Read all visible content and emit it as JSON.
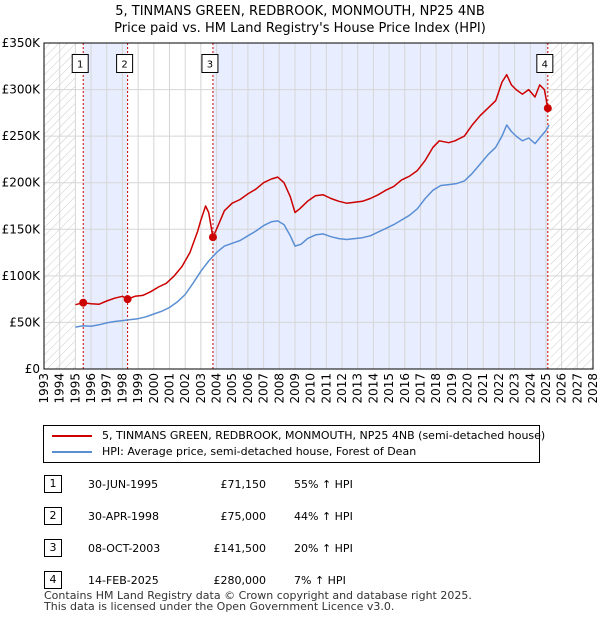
{
  "chart_data": {
    "type": "line",
    "title": "5, TINMANS GREEN, REDBROOK, MONMOUTH, NP25 4NB",
    "subtitle": "Price paid vs. HM Land Registry's House Price Index (HPI)",
    "xlim": [
      1993,
      2028
    ],
    "ylim": [
      0,
      350000
    ],
    "xticks": [
      1993,
      1994,
      1995,
      1996,
      1997,
      1998,
      1999,
      2000,
      2001,
      2002,
      2003,
      2004,
      2005,
      2006,
      2007,
      2008,
      2009,
      2010,
      2011,
      2012,
      2013,
      2014,
      2015,
      2016,
      2017,
      2018,
      2019,
      2020,
      2021,
      2022,
      2023,
      2024,
      2025,
      2026,
      2027,
      2028
    ],
    "xtick_labels": [
      "1993",
      "1994",
      "1995",
      "1996",
      "1997",
      "1998",
      "1999",
      "2000",
      "2001",
      "2002",
      "2003",
      "2004",
      "2005",
      "2006",
      "2007",
      "2008",
      "2009",
      "2010",
      "2011",
      "2012",
      "2013",
      "2014",
      "2015",
      "2016",
      "2017",
      "2018",
      "2019",
      "2020",
      "2021",
      "2022",
      "2023",
      "2024",
      "2025",
      "2026",
      "2027",
      "2028"
    ],
    "yticks": [
      0,
      50000,
      100000,
      150000,
      200000,
      250000,
      300000,
      350000
    ],
    "ytick_labels": [
      "£0",
      "£50K",
      "£100K",
      "£150K",
      "£200K",
      "£250K",
      "£300K",
      "£350K"
    ],
    "data_start": 1995.0,
    "data_end": 2025.3,
    "series": [
      {
        "name": "5, TINMANS GREEN, REDBROOK, MONMOUTH, NP25 4NB (semi-detached house)",
        "color": "#cc0000",
        "points": [
          [
            1995.0,
            69000
          ],
          [
            1995.5,
            71150
          ],
          [
            1996.0,
            70000
          ],
          [
            1996.5,
            69500
          ],
          [
            1997.0,
            73000
          ],
          [
            1997.5,
            76000
          ],
          [
            1998.0,
            78000
          ],
          [
            1998.33,
            75000
          ],
          [
            1998.8,
            78000
          ],
          [
            1999.3,
            79000
          ],
          [
            1999.8,
            83000
          ],
          [
            2000.3,
            88000
          ],
          [
            2000.8,
            92000
          ],
          [
            2001.3,
            100000
          ],
          [
            2001.8,
            110000
          ],
          [
            2002.3,
            125000
          ],
          [
            2002.8,
            148000
          ],
          [
            2003.0,
            160000
          ],
          [
            2003.3,
            175000
          ],
          [
            2003.5,
            168000
          ],
          [
            2003.77,
            141500
          ],
          [
            2004.0,
            150000
          ],
          [
            2004.5,
            170000
          ],
          [
            2005.0,
            178000
          ],
          [
            2005.5,
            182000
          ],
          [
            2006.0,
            188000
          ],
          [
            2006.5,
            193000
          ],
          [
            2007.0,
            200000
          ],
          [
            2007.5,
            204000
          ],
          [
            2007.9,
            206000
          ],
          [
            2008.3,
            200000
          ],
          [
            2008.7,
            185000
          ],
          [
            2009.0,
            168000
          ],
          [
            2009.3,
            172000
          ],
          [
            2009.8,
            180000
          ],
          [
            2010.3,
            186000
          ],
          [
            2010.8,
            187000
          ],
          [
            2011.3,
            183000
          ],
          [
            2011.8,
            180000
          ],
          [
            2012.3,
            178000
          ],
          [
            2012.8,
            179000
          ],
          [
            2013.3,
            180000
          ],
          [
            2013.8,
            183000
          ],
          [
            2014.3,
            187000
          ],
          [
            2014.8,
            192000
          ],
          [
            2015.3,
            196000
          ],
          [
            2015.8,
            203000
          ],
          [
            2016.3,
            207000
          ],
          [
            2016.8,
            213000
          ],
          [
            2017.3,
            224000
          ],
          [
            2017.8,
            238000
          ],
          [
            2018.2,
            245000
          ],
          [
            2018.8,
            243000
          ],
          [
            2019.2,
            245000
          ],
          [
            2019.8,
            250000
          ],
          [
            2020.3,
            262000
          ],
          [
            2020.8,
            272000
          ],
          [
            2021.3,
            280000
          ],
          [
            2021.8,
            288000
          ],
          [
            2022.2,
            308000
          ],
          [
            2022.5,
            316000
          ],
          [
            2022.8,
            305000
          ],
          [
            2023.1,
            300000
          ],
          [
            2023.5,
            295000
          ],
          [
            2023.9,
            300000
          ],
          [
            2024.3,
            292000
          ],
          [
            2024.6,
            305000
          ],
          [
            2024.9,
            300000
          ],
          [
            2025.12,
            280000
          ]
        ]
      },
      {
        "name": "HPI: Average price, semi-detached house, Forest of Dean",
        "color": "#5b8fd4",
        "points": [
          [
            1995.0,
            45000
          ],
          [
            1995.5,
            46500
          ],
          [
            1996.0,
            46000
          ],
          [
            1996.5,
            47500
          ],
          [
            1997.0,
            49500
          ],
          [
            1997.5,
            51000
          ],
          [
            1998.0,
            52000
          ],
          [
            1998.5,
            53000
          ],
          [
            1999.0,
            54000
          ],
          [
            1999.5,
            56000
          ],
          [
            2000.0,
            59000
          ],
          [
            2000.5,
            62000
          ],
          [
            2001.0,
            66000
          ],
          [
            2001.5,
            72000
          ],
          [
            2002.0,
            80000
          ],
          [
            2002.5,
            92000
          ],
          [
            2003.0,
            105000
          ],
          [
            2003.5,
            116000
          ],
          [
            2004.0,
            125000
          ],
          [
            2004.5,
            132000
          ],
          [
            2005.0,
            135000
          ],
          [
            2005.5,
            138000
          ],
          [
            2006.0,
            143000
          ],
          [
            2006.5,
            148000
          ],
          [
            2007.0,
            154000
          ],
          [
            2007.5,
            158000
          ],
          [
            2007.9,
            159000
          ],
          [
            2008.3,
            155000
          ],
          [
            2008.7,
            143000
          ],
          [
            2009.0,
            132000
          ],
          [
            2009.4,
            134000
          ],
          [
            2009.8,
            140000
          ],
          [
            2010.3,
            144000
          ],
          [
            2010.8,
            145000
          ],
          [
            2011.3,
            142000
          ],
          [
            2011.8,
            140000
          ],
          [
            2012.3,
            139000
          ],
          [
            2012.8,
            140000
          ],
          [
            2013.3,
            141000
          ],
          [
            2013.8,
            143000
          ],
          [
            2014.3,
            147000
          ],
          [
            2014.8,
            151000
          ],
          [
            2015.3,
            155000
          ],
          [
            2015.8,
            160000
          ],
          [
            2016.3,
            165000
          ],
          [
            2016.8,
            172000
          ],
          [
            2017.3,
            183000
          ],
          [
            2017.8,
            192000
          ],
          [
            2018.3,
            197000
          ],
          [
            2018.8,
            198000
          ],
          [
            2019.3,
            199000
          ],
          [
            2019.8,
            202000
          ],
          [
            2020.3,
            210000
          ],
          [
            2020.8,
            220000
          ],
          [
            2021.3,
            230000
          ],
          [
            2021.8,
            238000
          ],
          [
            2022.2,
            250000
          ],
          [
            2022.5,
            262000
          ],
          [
            2022.8,
            255000
          ],
          [
            2023.1,
            250000
          ],
          [
            2023.5,
            245000
          ],
          [
            2023.9,
            248000
          ],
          [
            2024.3,
            242000
          ],
          [
            2024.7,
            250000
          ],
          [
            2025.0,
            256000
          ],
          [
            2025.2,
            262000
          ]
        ]
      }
    ],
    "sales": [
      {
        "label": "1",
        "x": 1995.5,
        "y": 71150
      },
      {
        "label": "2",
        "x": 1998.33,
        "y": 75000
      },
      {
        "label": "3",
        "x": 2003.77,
        "y": 141500
      },
      {
        "label": "4",
        "x": 2025.12,
        "y": 280000
      }
    ],
    "annotation_y": 328000
  },
  "legend": {
    "property": "5, TINMANS GREEN, REDBROOK, MONMOUTH, NP25 4NB (semi-detached house)",
    "hpi": "HPI: Average price, semi-detached house, Forest of Dean"
  },
  "transactions": [
    {
      "num": "1",
      "date": "30-JUN-1995",
      "price": "£71,150",
      "hpi": "55% ↑ HPI"
    },
    {
      "num": "2",
      "date": "30-APR-1998",
      "price": "£75,000",
      "hpi": "44% ↑ HPI"
    },
    {
      "num": "3",
      "date": "08-OCT-2003",
      "price": "£141,500",
      "hpi": "20% ↑ HPI"
    },
    {
      "num": "4",
      "date": "14-FEB-2025",
      "price": "£280,000",
      "hpi": "7% ↑ HPI"
    }
  ],
  "footer": {
    "line1": "Contains HM Land Registry data © Crown copyright and database right 2025.",
    "line2": "This data is licensed under the Open Government Licence v3.0."
  },
  "colors": {
    "property": "#cc0000",
    "hpi": "#5b8fd4",
    "shade": "#e8eeff",
    "hatch": "#cccccc",
    "grid": "#d6d6d6"
  }
}
